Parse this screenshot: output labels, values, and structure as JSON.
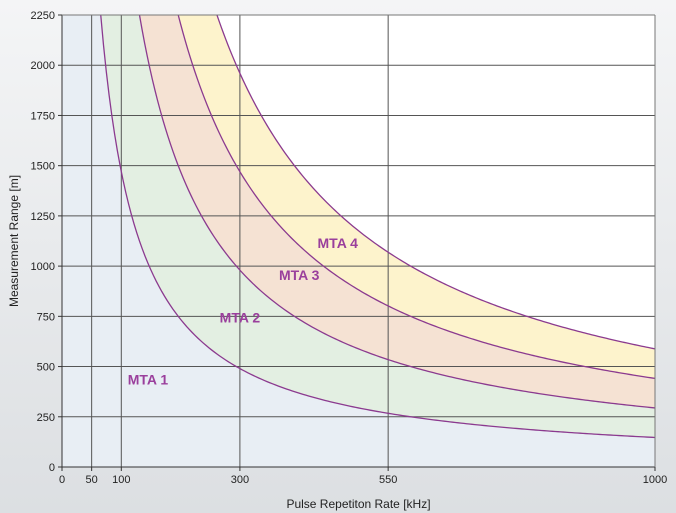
{
  "chart_data": {
    "type": "area",
    "xlabel": "Pulse Repetiton Rate [kHz]",
    "ylabel": "Measurement Range [m]",
    "xlim": [
      0,
      1000
    ],
    "ylim": [
      0,
      2250
    ],
    "x_ticks": [
      "0",
      "50",
      "100",
      "300",
      "550",
      "1000"
    ],
    "x_tick_values": [
      0,
      50,
      100,
      300,
      550,
      1000
    ],
    "y_ticks": [
      "0",
      "250",
      "500",
      "750",
      "1000",
      "1250",
      "1500",
      "1750",
      "2000",
      "2250"
    ],
    "y_tick_values": [
      0,
      250,
      500,
      750,
      1000,
      1250,
      1500,
      1750,
      2000,
      2250
    ],
    "grid": true,
    "boundary_curves": [
      {
        "range_constant_m_kHz": 147000,
        "x": [
          65,
          100,
          300,
          550,
          1000
        ],
        "y": [
          2250,
          1470,
          490,
          267,
          147
        ]
      },
      {
        "range_constant_m_kHz": 294000,
        "x": [
          131,
          300,
          550,
          1000
        ],
        "y": [
          2250,
          980,
          535,
          294
        ]
      },
      {
        "range_constant_m_kHz": 441000,
        "x": [
          196,
          300,
          550,
          1000
        ],
        "y": [
          2250,
          1470,
          802,
          441
        ]
      },
      {
        "range_constant_m_kHz": 588000,
        "x": [
          261,
          300,
          550,
          1000
        ],
        "y": [
          2250,
          1960,
          1069,
          588
        ]
      }
    ],
    "regions": [
      {
        "name": "MTA 1",
        "fill": "#e8eef4",
        "label_x": 145,
        "label_y": 410
      },
      {
        "name": "MTA 2",
        "fill": "#e3efe2",
        "label_x": 300,
        "label_y": 720
      },
      {
        "name": "MTA 3",
        "fill": "#f5e2d3",
        "label_x": 400,
        "label_y": 930
      },
      {
        "name": "MTA 4",
        "fill": "#fdf3cc",
        "label_x": 465,
        "label_y": 1090
      }
    ],
    "curve_color": "#8b3a8f",
    "grid_color": "#555555"
  }
}
